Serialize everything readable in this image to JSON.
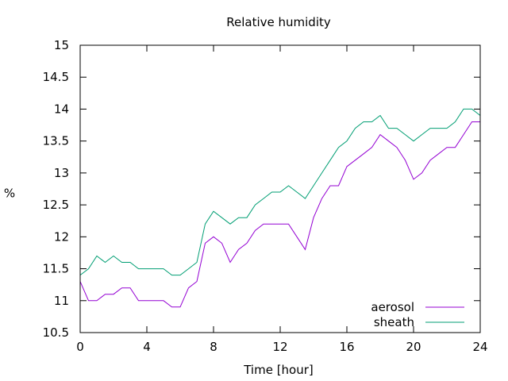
{
  "chart_data": {
    "type": "line",
    "title": "Relative humidity",
    "xlabel": "Time [hour]",
    "ylabel": "%",
    "xlim": [
      0,
      24
    ],
    "ylim": [
      10.5,
      15
    ],
    "xticks": [
      0,
      4,
      8,
      12,
      16,
      20,
      24
    ],
    "xtick_labels": [
      "0",
      "4",
      "8",
      "12",
      "16",
      "20",
      "24"
    ],
    "yticks": [
      10.5,
      11,
      11.5,
      12,
      12.5,
      13,
      13.5,
      14,
      14.5,
      15
    ],
    "ytick_labels": [
      "10.5",
      "11",
      "11.5",
      "12",
      "12.5",
      "13",
      "13.5",
      "14",
      "14.5",
      "15"
    ],
    "grid": false,
    "legend_position": "bottom-right",
    "series": [
      {
        "name": "aerosol",
        "color": "#9400d3",
        "x": [
          0,
          0.5,
          1,
          1.5,
          2,
          2.5,
          3,
          3.5,
          4,
          4.5,
          5,
          5.5,
          6,
          6.5,
          7,
          7.5,
          8,
          8.5,
          9,
          9.5,
          10,
          10.5,
          11,
          11.5,
          12,
          12.5,
          13,
          13.5,
          14,
          14.5,
          15,
          15.5,
          16,
          16.5,
          17,
          17.5,
          18,
          18.5,
          19,
          19.5,
          20,
          20.5,
          21,
          21.5,
          22,
          22.5,
          23,
          23.5,
          24
        ],
        "y": [
          11.3,
          11.0,
          11.0,
          11.1,
          11.1,
          11.2,
          11.2,
          11.0,
          11.0,
          11.0,
          11.0,
          10.9,
          10.9,
          11.2,
          11.3,
          11.9,
          12.0,
          11.9,
          11.6,
          11.8,
          11.9,
          12.1,
          12.2,
          12.2,
          12.2,
          12.2,
          12.0,
          11.8,
          12.3,
          12.6,
          12.8,
          12.8,
          13.1,
          13.2,
          13.3,
          13.4,
          13.6,
          13.5,
          13.4,
          13.2,
          12.9,
          13.0,
          13.2,
          13.3,
          13.4,
          13.4,
          13.6,
          13.8,
          13.8
        ]
      },
      {
        "name": "sheath",
        "color": "#009e73",
        "x": [
          0,
          0.5,
          1,
          1.5,
          2,
          2.5,
          3,
          3.5,
          4,
          4.5,
          5,
          5.5,
          6,
          6.5,
          7,
          7.5,
          8,
          8.5,
          9,
          9.5,
          10,
          10.5,
          11,
          11.5,
          12,
          12.5,
          13,
          13.5,
          14,
          14.5,
          15,
          15.5,
          16,
          16.5,
          17,
          17.5,
          18,
          18.5,
          19,
          19.5,
          20,
          20.5,
          21,
          21.5,
          22,
          22.5,
          23,
          23.5,
          24
        ],
        "y": [
          11.4,
          11.5,
          11.7,
          11.6,
          11.7,
          11.6,
          11.6,
          11.5,
          11.5,
          11.5,
          11.5,
          11.4,
          11.4,
          11.5,
          11.6,
          12.2,
          12.4,
          12.3,
          12.2,
          12.3,
          12.3,
          12.5,
          12.6,
          12.7,
          12.7,
          12.8,
          12.7,
          12.6,
          12.8,
          13.0,
          13.2,
          13.4,
          13.5,
          13.7,
          13.8,
          13.8,
          13.9,
          13.7,
          13.7,
          13.6,
          13.5,
          13.6,
          13.7,
          13.7,
          13.7,
          13.8,
          14.0,
          14.0,
          13.9
        ]
      }
    ]
  }
}
